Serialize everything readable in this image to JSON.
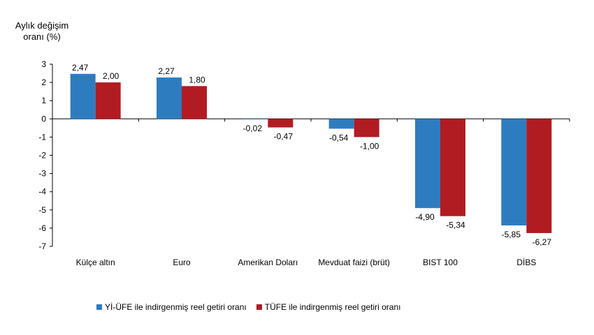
{
  "chart_data": {
    "type": "bar",
    "ylabel_line1": "Aylık değişim",
    "ylabel_line2": "oranı (%)",
    "ylim": [
      -7,
      3
    ],
    "yticks": [
      3,
      2,
      1,
      0,
      -1,
      -2,
      -3,
      -4,
      -5,
      -6,
      -7
    ],
    "categories": [
      "Külçe altın",
      "Euro",
      "Amerikan Doları",
      "Mevduat faizi (brüt)",
      "BIST 100",
      "DİBS"
    ],
    "series": [
      {
        "name": "Yİ-ÜFE ile indirgenmiş reel getiri oranı",
        "color": "#2E7CC0",
        "values": [
          2.47,
          2.27,
          -0.02,
          -0.54,
          -4.9,
          -5.85
        ],
        "labels": [
          "2,47",
          "2,27",
          "-0,02",
          "-0,54",
          "-4,90",
          "-5,85"
        ]
      },
      {
        "name": "TÜFE ile indirgenmiş reel getiri oranı",
        "color": "#B01C22",
        "values": [
          2.0,
          1.8,
          -0.47,
          -1.0,
          -5.34,
          -6.27
        ],
        "labels": [
          "2,00",
          "1,80",
          "-0,47",
          "-1,00",
          "-5,34",
          "-6,27"
        ]
      }
    ],
    "legend_position": "bottom",
    "grid": false
  }
}
